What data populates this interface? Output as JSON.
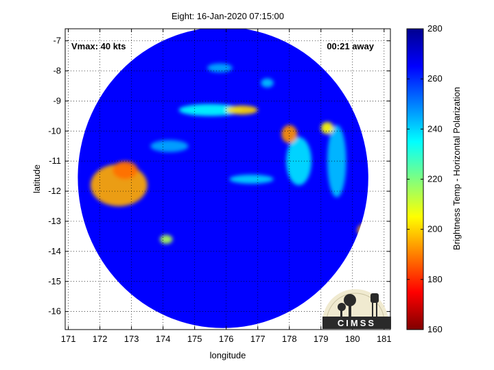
{
  "chart_data": {
    "type": "heatmap",
    "title": "Eight: 16-Jan-2020 07:15:00",
    "xlabel": "longitude",
    "ylabel": "latitude",
    "xlim": [
      170.9,
      181.2
    ],
    "ylim": [
      -16.6,
      -6.6
    ],
    "x_ticks": [
      171,
      172,
      173,
      174,
      175,
      176,
      177,
      178,
      179,
      180,
      181
    ],
    "y_ticks": [
      -7,
      -8,
      -9,
      -10,
      -11,
      -12,
      -13,
      -14,
      -15,
      -16
    ],
    "grid": true,
    "grid_style": "dotted",
    "colorbar": {
      "label": "Brightness Temp - Horizontal Polarization",
      "range": [
        160,
        280
      ],
      "ticks": [
        160,
        180,
        200,
        220,
        240,
        260,
        280
      ],
      "colormap": "jet"
    },
    "swath": {
      "shape": "circle",
      "center": [
        175.9,
        -11.55
      ],
      "radius_deg_lon": 4.6,
      "radius_deg_lat": 5.0
    },
    "background_temp": 265,
    "features": [
      {
        "name": "western warm region",
        "lon": 172.6,
        "lat": -11.8,
        "temp": 195,
        "spread_lon": 0.9,
        "spread_lat": 0.7
      },
      {
        "name": "western core",
        "lon": 172.8,
        "lat": -11.3,
        "temp": 188,
        "spread_lon": 0.4,
        "spread_lat": 0.3
      },
      {
        "name": "band near 176.5",
        "lon": 176.5,
        "lat": -9.3,
        "temp": 200,
        "spread_lon": 0.5,
        "spread_lat": 0.15
      },
      {
        "name": "band near 178",
        "lon": 178.0,
        "lat": -10.1,
        "temp": 192,
        "spread_lon": 0.25,
        "spread_lat": 0.3
      },
      {
        "name": "spot near 179.2",
        "lon": 179.2,
        "lat": -9.9,
        "temp": 205,
        "spread_lon": 0.2,
        "spread_lat": 0.2
      },
      {
        "name": "southeast edge",
        "lon": 180.5,
        "lat": -13.3,
        "temp": 195,
        "spread_lon": 0.35,
        "spread_lat": 0.25
      },
      {
        "name": "southern spot",
        "lon": 174.1,
        "lat": -13.6,
        "temp": 215,
        "spread_lon": 0.2,
        "spread_lat": 0.15
      },
      {
        "name": "north band",
        "lon": 175.5,
        "lat": -9.3,
        "temp": 235,
        "spread_lon": 1.0,
        "spread_lat": 0.2
      },
      {
        "name": "east band",
        "lon": 178.3,
        "lat": -11.0,
        "temp": 238,
        "spread_lon": 0.4,
        "spread_lat": 0.8
      },
      {
        "name": "center streak",
        "lon": 176.8,
        "lat": -11.6,
        "temp": 240,
        "spread_lon": 0.7,
        "spread_lat": 0.15
      },
      {
        "name": "right column",
        "lon": 179.5,
        "lat": -11.0,
        "temp": 242,
        "spread_lon": 0.3,
        "spread_lat": 1.2
      },
      {
        "name": "north patch",
        "lon": 175.8,
        "lat": -7.9,
        "temp": 245,
        "spread_lon": 0.4,
        "spread_lat": 0.15
      },
      {
        "name": "north patch 2",
        "lon": 177.3,
        "lat": -8.4,
        "temp": 242,
        "spread_lon": 0.2,
        "spread_lat": 0.15
      },
      {
        "name": "west band",
        "lon": 174.2,
        "lat": -10.5,
        "temp": 245,
        "spread_lon": 0.6,
        "spread_lat": 0.2
      }
    ]
  },
  "annotations": {
    "vmax": "Vmax: 40 kts",
    "time_away": "00:21 away"
  },
  "logo": {
    "text": "CIMSS"
  }
}
